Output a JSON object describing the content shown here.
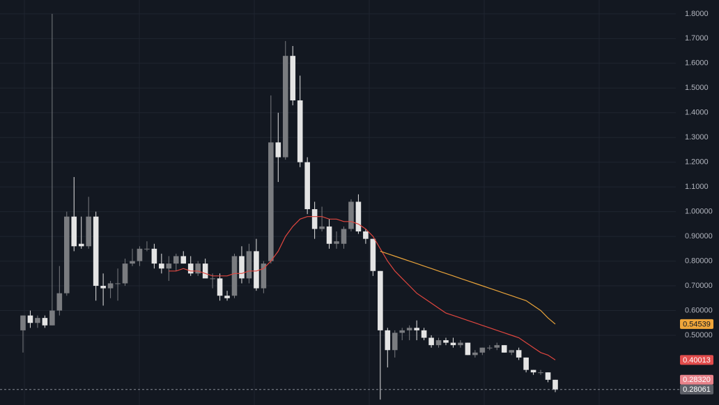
{
  "chart_data": {
    "type": "candlestick",
    "ylim": [
      0.218,
      1.856
    ],
    "yticks": [
      {
        "value": 0.5,
        "label": "0.50000"
      },
      {
        "value": 0.6,
        "label": "0.60000"
      },
      {
        "value": 0.7,
        "label": "0.70000"
      },
      {
        "value": 0.8,
        "label": "0.80000"
      },
      {
        "value": 0.9,
        "label": "0.90000"
      },
      {
        "value": 1.0,
        "label": "1.00000"
      },
      {
        "value": 1.1,
        "label": "1.1000"
      },
      {
        "value": 1.2,
        "label": "1.2000"
      },
      {
        "value": 1.3,
        "label": "1.3000"
      },
      {
        "value": 1.4,
        "label": "1.4000"
      },
      {
        "value": 1.5,
        "label": "1.5000"
      },
      {
        "value": 1.6,
        "label": "1.6000"
      },
      {
        "value": 1.7,
        "label": "1.7000"
      },
      {
        "value": 1.8,
        "label": "1.8000"
      }
    ],
    "grid": true,
    "up_color": "#7a7c80",
    "down_color": "#e4e4e4",
    "open": [
      0.52,
      0.58,
      0.55,
      0.57,
      0.54,
      0.6,
      0.67,
      0.98,
      0.87,
      0.86,
      0.98,
      0.7,
      0.69,
      0.71,
      0.71,
      0.79,
      0.8,
      0.85,
      0.85,
      0.79,
      0.77,
      0.79,
      0.82,
      0.79,
      0.75,
      0.79,
      0.73,
      0.73,
      0.66,
      0.66,
      0.82,
      0.73,
      0.84,
      0.69,
      0.8,
      1.28,
      1.22,
      1.63,
      1.45,
      1.2,
      1.01,
      0.93,
      0.94,
      0.87,
      0.87,
      0.93,
      1.04,
      0.92,
      0.89,
      0.76,
      0.52,
      0.44,
      0.51,
      0.52,
      0.53,
      0.52,
      0.49,
      0.46,
      0.48,
      0.47,
      0.46,
      0.47,
      0.42,
      0.43,
      0.45,
      0.45,
      0.46,
      0.43,
      0.44,
      0.41,
      0.36,
      0.35,
      0.35,
      0.32
    ],
    "high": [
      0.58,
      0.6,
      0.58,
      0.58,
      1.8,
      0.78,
      1.0,
      1.14,
      0.98,
      1.06,
      1.0,
      0.75,
      0.72,
      0.77,
      0.81,
      0.85,
      0.86,
      0.88,
      0.87,
      0.83,
      0.82,
      0.83,
      0.84,
      0.82,
      0.8,
      0.81,
      0.75,
      0.75,
      0.68,
      0.83,
      0.86,
      0.87,
      0.89,
      0.8,
      1.47,
      1.4,
      1.69,
      1.67,
      1.55,
      1.22,
      1.04,
      1.02,
      0.97,
      0.92,
      0.94,
      1.05,
      1.07,
      0.93,
      0.89,
      0.76,
      0.53,
      0.52,
      0.53,
      0.54,
      0.56,
      0.53,
      0.5,
      0.49,
      0.49,
      0.49,
      0.48,
      0.47,
      0.44,
      0.45,
      0.46,
      0.47,
      0.46,
      0.44,
      0.45,
      0.41,
      0.36,
      0.36,
      0.35,
      0.32
    ],
    "low": [
      0.43,
      0.53,
      0.53,
      0.53,
      0.54,
      0.58,
      0.66,
      0.84,
      0.85,
      0.85,
      0.64,
      0.62,
      0.65,
      0.64,
      0.7,
      0.78,
      0.78,
      0.84,
      0.77,
      0.75,
      0.72,
      0.76,
      0.79,
      0.74,
      0.74,
      0.74,
      0.69,
      0.64,
      0.64,
      0.65,
      0.71,
      0.71,
      0.68,
      0.67,
      0.79,
      1.12,
      1.21,
      1.43,
      1.18,
      0.99,
      0.89,
      0.92,
      0.85,
      0.85,
      0.85,
      0.92,
      0.91,
      0.87,
      0.74,
      0.24,
      0.37,
      0.41,
      0.48,
      0.48,
      0.48,
      0.48,
      0.45,
      0.45,
      0.46,
      0.45,
      0.45,
      0.42,
      0.41,
      0.42,
      0.44,
      0.44,
      0.43,
      0.42,
      0.4,
      0.35,
      0.34,
      0.34,
      0.31,
      0.27
    ],
    "close": [
      0.58,
      0.55,
      0.57,
      0.54,
      0.6,
      0.67,
      0.98,
      0.86,
      0.86,
      0.98,
      0.7,
      0.69,
      0.71,
      0.71,
      0.79,
      0.8,
      0.85,
      0.85,
      0.79,
      0.77,
      0.79,
      0.82,
      0.79,
      0.75,
      0.79,
      0.73,
      0.73,
      0.66,
      0.65,
      0.82,
      0.73,
      0.84,
      0.69,
      0.79,
      1.28,
      1.22,
      1.63,
      1.45,
      1.2,
      1.01,
      0.93,
      0.94,
      0.87,
      0.88,
      0.93,
      1.04,
      0.92,
      0.89,
      0.76,
      0.52,
      0.44,
      0.51,
      0.52,
      0.53,
      0.52,
      0.49,
      0.46,
      0.48,
      0.47,
      0.46,
      0.47,
      0.42,
      0.43,
      0.45,
      0.45,
      0.46,
      0.43,
      0.44,
      0.41,
      0.36,
      0.35,
      0.35,
      0.32,
      0.28061
    ],
    "series": [
      {
        "color": "#e0463f",
        "values": [
          null,
          null,
          null,
          null,
          null,
          null,
          null,
          null,
          null,
          null,
          null,
          null,
          null,
          null,
          null,
          null,
          null,
          null,
          null,
          null,
          0.76,
          0.76,
          0.77,
          0.76,
          0.76,
          0.75,
          0.74,
          0.74,
          0.74,
          0.75,
          0.75,
          0.76,
          0.76,
          0.77,
          0.8,
          0.84,
          0.9,
          0.94,
          0.97,
          0.98,
          0.98,
          0.98,
          0.97,
          0.97,
          0.96,
          0.96,
          0.95,
          0.93,
          0.9,
          0.85,
          0.8,
          0.76,
          0.73,
          0.7,
          0.67,
          0.65,
          0.63,
          0.61,
          0.59,
          0.58,
          0.57,
          0.56,
          0.55,
          0.54,
          0.53,
          0.52,
          0.51,
          0.5,
          0.49,
          0.47,
          0.45,
          0.43,
          0.42,
          0.40013
        ]
      },
      {
        "color": "#e8a33a",
        "values": [
          null,
          null,
          null,
          null,
          null,
          null,
          null,
          null,
          null,
          null,
          null,
          null,
          null,
          null,
          null,
          null,
          null,
          null,
          null,
          null,
          null,
          null,
          null,
          null,
          null,
          null,
          null,
          null,
          null,
          null,
          null,
          null,
          null,
          null,
          null,
          null,
          null,
          null,
          null,
          null,
          null,
          null,
          null,
          null,
          null,
          null,
          null,
          null,
          null,
          0.84,
          0.83,
          0.82,
          0.81,
          0.8,
          0.79,
          0.78,
          0.77,
          0.76,
          0.75,
          0.74,
          0.73,
          0.72,
          0.71,
          0.7,
          0.69,
          0.68,
          0.67,
          0.66,
          0.65,
          0.64,
          0.62,
          0.6,
          0.57,
          0.54539
        ]
      }
    ],
    "price_labels": [
      {
        "value": 0.54539,
        "label": "0.54539",
        "color": "#f0a63a"
      },
      {
        "value": 0.40013,
        "label": "0.40013",
        "color": "#e24c4c"
      },
      {
        "value": 0.2832,
        "label": "0.28320",
        "color": "#e8828a"
      },
      {
        "value": 0.28061,
        "label": "0.28061",
        "color": "#5d6068"
      }
    ]
  }
}
